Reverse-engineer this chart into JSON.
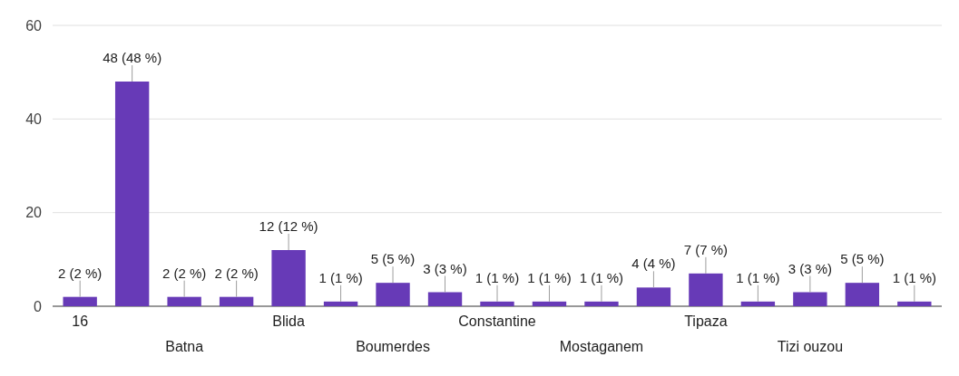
{
  "chart_data": {
    "type": "bar",
    "categories": [
      "16",
      null,
      "Batna",
      null,
      "Blida",
      null,
      "Boumerdes",
      null,
      "Constantine",
      null,
      "Mostaganem",
      null,
      "Tipaza",
      null,
      "Tizi ouzou",
      null,
      null
    ],
    "values": [
      2,
      48,
      2,
      2,
      12,
      1,
      5,
      3,
      1,
      1,
      1,
      4,
      7,
      1,
      3,
      5,
      1
    ],
    "value_labels": [
      "2 (2 %)",
      "48 (48 %)",
      "2 (2 %)",
      "2 (2 %)",
      "12 (12 %)",
      "1 (1 %)",
      "5 (5 %)",
      "3 (3 %)",
      "1 (1 %)",
      "1 (1 %)",
      "1 (1 %)",
      "4 (4 %)",
      "7 (7 %)",
      "1 (1 %)",
      "3 (3 %)",
      "5 (5 %)",
      "1 (1 %)"
    ],
    "color": "#673ab7",
    "ylim": [
      0,
      60
    ],
    "yticks": [
      0,
      20,
      40,
      60
    ],
    "grid": "y"
  }
}
